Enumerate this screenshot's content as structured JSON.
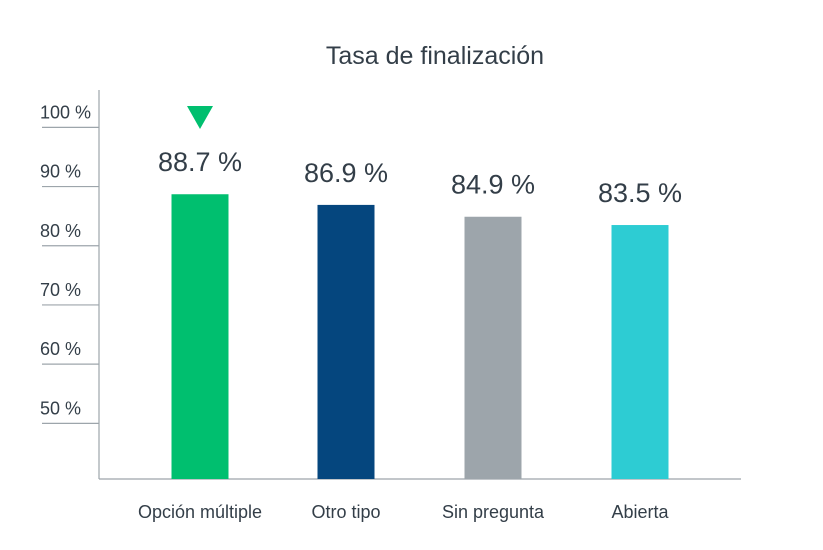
{
  "chart_data": {
    "type": "bar",
    "title": "Tasa de finalización",
    "xlabel": "",
    "ylabel": "",
    "categories": [
      "Opción múltiple",
      "Otro tipo",
      "Sin pregunta",
      "Abierta"
    ],
    "values": [
      88.7,
      86.9,
      84.9,
      83.5
    ],
    "value_labels": [
      "88.7 %",
      "86.9 %",
      "84.9 %",
      "83.5 %"
    ],
    "y_ticks": [
      {
        "value": 100,
        "label": "100 %"
      },
      {
        "value": 90,
        "label": "90 %"
      },
      {
        "value": 80,
        "label": "80 %"
      },
      {
        "value": 70,
        "label": "70 %"
      },
      {
        "value": 60,
        "label": "60 %"
      },
      {
        "value": 50,
        "label": "50 %"
      }
    ],
    "ylim": [
      40.6,
      100.8
    ],
    "grid": false,
    "colors": [
      "#00bf6f",
      "#05467e",
      "#9da5ab",
      "#2dccd3"
    ],
    "highlight": {
      "category_index": 0,
      "marker": "down-triangle-icon",
      "color": "#00bf6f"
    },
    "axis_color": "#9da5ab",
    "text_color": "#333e48"
  }
}
